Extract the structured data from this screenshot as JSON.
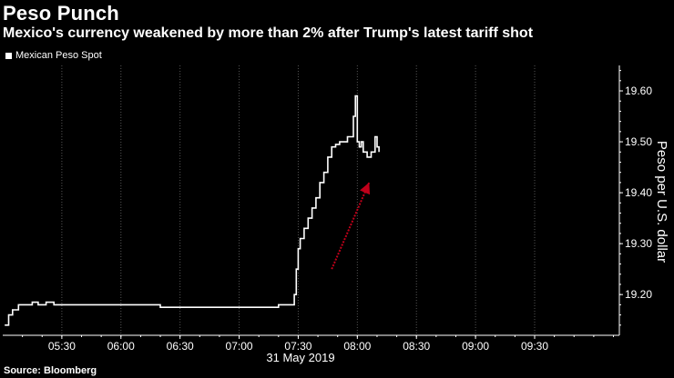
{
  "header": {
    "title": "Peso Punch",
    "subtitle": "Mexico's currency weakened by more than 2% after Trump's latest tariff shot"
  },
  "legend": {
    "label": "Mexican Peso Spot"
  },
  "footer": {
    "source": "Source: Bloomberg"
  },
  "colors": {
    "background": "#000000",
    "series": "#ffffff",
    "grid": "#555555",
    "arrow": "#c0001a"
  },
  "chart_data": {
    "type": "line",
    "title": "Peso Punch",
    "subtitle": "Mexico's currency weakened by more than 2% after Trump's latest tariff shot",
    "xlabel": "31 May 2019",
    "ylabel": "Peso per U.S. dollar",
    "x_tick_labels": [
      "05:30",
      "06:00",
      "06:30",
      "07:00",
      "07:30",
      "08:00",
      "08:30",
      "09:00",
      "09:30"
    ],
    "x_ticks": [
      "05:30",
      "06:00",
      "06:30",
      "07:00",
      "07:30",
      "08:00",
      "08:30",
      "09:00",
      "09:30"
    ],
    "y_ticks": [
      19.2,
      19.3,
      19.4,
      19.5,
      19.6
    ],
    "y_tick_labels": [
      "19.20",
      "19.30",
      "19.40",
      "19.50",
      "19.60"
    ],
    "xlim": [
      "05:00",
      "10:13"
    ],
    "ylim": [
      19.12,
      19.65
    ],
    "y_axis_position": "right",
    "grid": "vertical dotted",
    "legend_position": "top-left",
    "series": [
      {
        "name": "Mexican Peso Spot",
        "x": [
          "05:01",
          "05:03",
          "05:05",
          "05:08",
          "05:12",
          "05:15",
          "05:18",
          "05:22",
          "05:26",
          "05:30",
          "05:35",
          "05:40",
          "05:45",
          "05:50",
          "05:55",
          "06:00",
          "06:10",
          "06:20",
          "06:30",
          "06:40",
          "06:50",
          "07:00",
          "07:10",
          "07:20",
          "07:27",
          "07:28",
          "07:29",
          "07:30",
          "07:31",
          "07:33",
          "07:35",
          "07:37",
          "07:39",
          "07:41",
          "07:43",
          "07:45",
          "07:47",
          "07:49",
          "07:51",
          "07:53",
          "07:55",
          "07:57",
          "07:58",
          "07:59",
          "08:00",
          "08:01",
          "08:02",
          "08:03",
          "08:05",
          "08:07",
          "08:09",
          "08:10",
          "08:11"
        ],
        "values": [
          19.14,
          19.16,
          19.17,
          19.18,
          19.18,
          19.185,
          19.18,
          19.185,
          19.18,
          19.18,
          19.18,
          19.18,
          19.18,
          19.18,
          19.18,
          19.18,
          19.18,
          19.175,
          19.175,
          19.175,
          19.175,
          19.175,
          19.175,
          19.18,
          19.18,
          19.2,
          19.25,
          19.29,
          19.31,
          19.33,
          19.35,
          19.37,
          19.39,
          19.42,
          19.44,
          19.47,
          19.49,
          19.495,
          19.5,
          19.5,
          19.51,
          19.51,
          19.55,
          19.59,
          19.5,
          19.49,
          19.5,
          19.48,
          19.47,
          19.48,
          19.51,
          19.49,
          19.48
        ]
      }
    ],
    "annotations": [
      {
        "type": "arrow",
        "color": "#c0001a",
        "from": [
          "07:47",
          19.25
        ],
        "to": [
          "08:06",
          19.42
        ]
      }
    ]
  }
}
